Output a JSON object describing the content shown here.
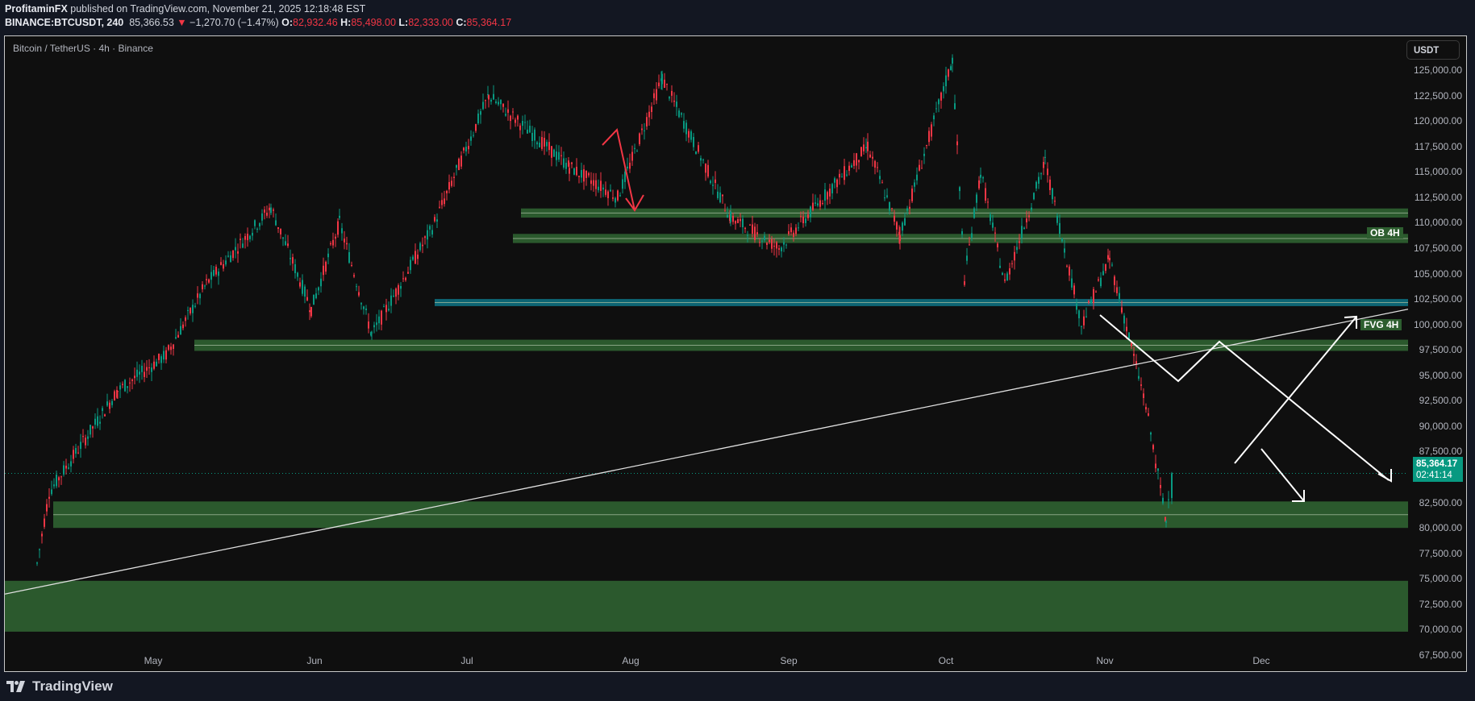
{
  "header": {
    "author": "ProfitaminFX",
    "published_text": "published on TradingView.com, November 21, 2025 12:18:48 EST",
    "symbol": "BINANCE:BTCUSDT, 240",
    "last_price": "85,366.53",
    "change": "−1,270.70 (−1.47%)",
    "ohlc": {
      "o_label": "O:",
      "o": "82,932.46",
      "h_label": "H:",
      "h": "85,498.00",
      "l_label": "L:",
      "l": "82,333.00",
      "c_label": "C:",
      "c": "85,364.17"
    },
    "down_arrow_icon": "triangle-down-icon"
  },
  "chart": {
    "title": "Bitcoin / TetherUS · 4h · Binance",
    "currency_button": "USDT",
    "current_price_tag": "85,364.17",
    "countdown": "02:41:14",
    "zone_labels": {
      "ob": "OB 4H",
      "fvg": "FVG 4H"
    }
  },
  "footer": {
    "brand": "TradingView",
    "logo_icon": "tradingview-logo-icon"
  },
  "colors": {
    "up": "#089981",
    "down": "#f23645",
    "zone_green": "#2d5e2f",
    "zone_teal": "#0e6a7a",
    "bg": "#0f0f0f",
    "page_bg": "#131722"
  },
  "chart_data": {
    "type": "candlestick",
    "title": "Bitcoin / TetherUS · 4h · Binance",
    "xlabel": "",
    "ylabel": "USDT",
    "x_ticks": [
      "May",
      "Jun",
      "Jul",
      "Aug",
      "Sep",
      "Oct",
      "Nov",
      "Dec"
    ],
    "y_ticks": [
      "125,000.00",
      "122,500.00",
      "120,000.00",
      "117,500.00",
      "115,000.00",
      "112,500.00",
      "110,000.00",
      "107,500.00",
      "105,000.00",
      "102,500.00",
      "100,000.00",
      "97,500.00",
      "95,000.00",
      "92,500.00",
      "90,000.00",
      "87,500.00",
      "85,000.00",
      "82,500.00",
      "80,000.00",
      "77,500.00",
      "75,000.00",
      "72,500.00",
      "70,000.00",
      "67,500.00"
    ],
    "ylim": [
      66000,
      127000
    ],
    "grid": false,
    "approx_price_path": [
      {
        "date": "Apr 7",
        "price": 76500
      },
      {
        "date": "Apr 10",
        "price": 83500
      },
      {
        "date": "Apr 22",
        "price": 93500
      },
      {
        "date": "May 1",
        "price": 97000
      },
      {
        "date": "May 10",
        "price": 104000
      },
      {
        "date": "May 22",
        "price": 111500
      },
      {
        "date": "Jun 5",
        "price": 101500
      },
      {
        "date": "Jun 10",
        "price": 110000
      },
      {
        "date": "Jun 22",
        "price": 99000
      },
      {
        "date": "Jul 3",
        "price": 109500
      },
      {
        "date": "Jul 14",
        "price": 122500
      },
      {
        "date": "Jul 25",
        "price": 115500
      },
      {
        "date": "Aug 2",
        "price": 112500
      },
      {
        "date": "Aug 14",
        "price": 124200
      },
      {
        "date": "Aug 25",
        "price": 110500
      },
      {
        "date": "Sep 1",
        "price": 107500
      },
      {
        "date": "Sep 17",
        "price": 117500
      },
      {
        "date": "Sep 25",
        "price": 108800
      },
      {
        "date": "Oct 6",
        "price": 126000
      },
      {
        "date": "Oct 10",
        "price": 104500
      },
      {
        "date": "Oct 14",
        "price": 115000
      },
      {
        "date": "Oct 17",
        "price": 104000
      },
      {
        "date": "Oct 28",
        "price": 116000
      },
      {
        "date": "Nov 4",
        "price": 100000
      },
      {
        "date": "Nov 11",
        "price": 106500
      },
      {
        "date": "Nov 17",
        "price": 92000
      },
      {
        "date": "Nov 21",
        "price": 80600
      },
      {
        "date": "Nov 21",
        "price": 85364
      }
    ],
    "last": {
      "open": 82932.46,
      "high": 85498.0,
      "low": 82333.0,
      "close": 85364.17
    },
    "zones": [
      {
        "label": "",
        "from": 110500,
        "to": 111400,
        "color": "green"
      },
      {
        "label": "OB 4H",
        "from": 108000,
        "to": 108900,
        "color": "green"
      },
      {
        "label": "",
        "from": 101800,
        "to": 102500,
        "color": "teal"
      },
      {
        "label": "FVG 4H",
        "from": 97400,
        "to": 98500,
        "color": "green"
      },
      {
        "label": "",
        "from": 80000,
        "to": 82600,
        "color": "green"
      },
      {
        "label": "",
        "from": 69800,
        "to": 74800,
        "color": "green"
      }
    ],
    "trendline": {
      "from": {
        "date": "Apr 1",
        "price": 73500
      },
      "to": {
        "date": "Nov 30",
        "price": 101500
      }
    },
    "annotations": [
      "red down arrow Jul→Aug to 111,000",
      "white projection: zigzag down, X pattern up/down scenarios near 80k-97k",
      "white arrow down toward 75,000"
    ]
  }
}
